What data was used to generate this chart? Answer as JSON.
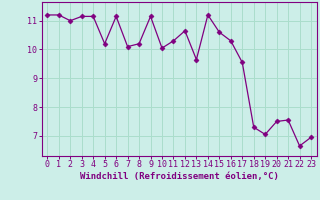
{
  "x": [
    0,
    1,
    2,
    3,
    4,
    5,
    6,
    7,
    8,
    9,
    10,
    11,
    12,
    13,
    14,
    15,
    16,
    17,
    18,
    19,
    20,
    21,
    22,
    23
  ],
  "y": [
    11.2,
    11.2,
    11.0,
    11.15,
    11.15,
    10.2,
    11.15,
    10.1,
    10.2,
    11.15,
    10.05,
    10.3,
    10.65,
    9.65,
    11.2,
    10.6,
    10.3,
    9.55,
    7.3,
    7.05,
    7.5,
    7.55,
    6.65,
    6.95
  ],
  "line_color": "#800080",
  "marker": "D",
  "marker_size": 2.5,
  "background_color": "#cceee8",
  "grid_color": "#aaddcc",
  "xlabel": "Windchill (Refroidissement éolien,°C)",
  "xlabel_fontsize": 6.5,
  "tick_fontsize": 6.0,
  "ylabel_ticks": [
    7,
    8,
    9,
    10,
    11
  ],
  "xlim": [
    -0.5,
    23.5
  ],
  "ylim": [
    6.3,
    11.65
  ]
}
